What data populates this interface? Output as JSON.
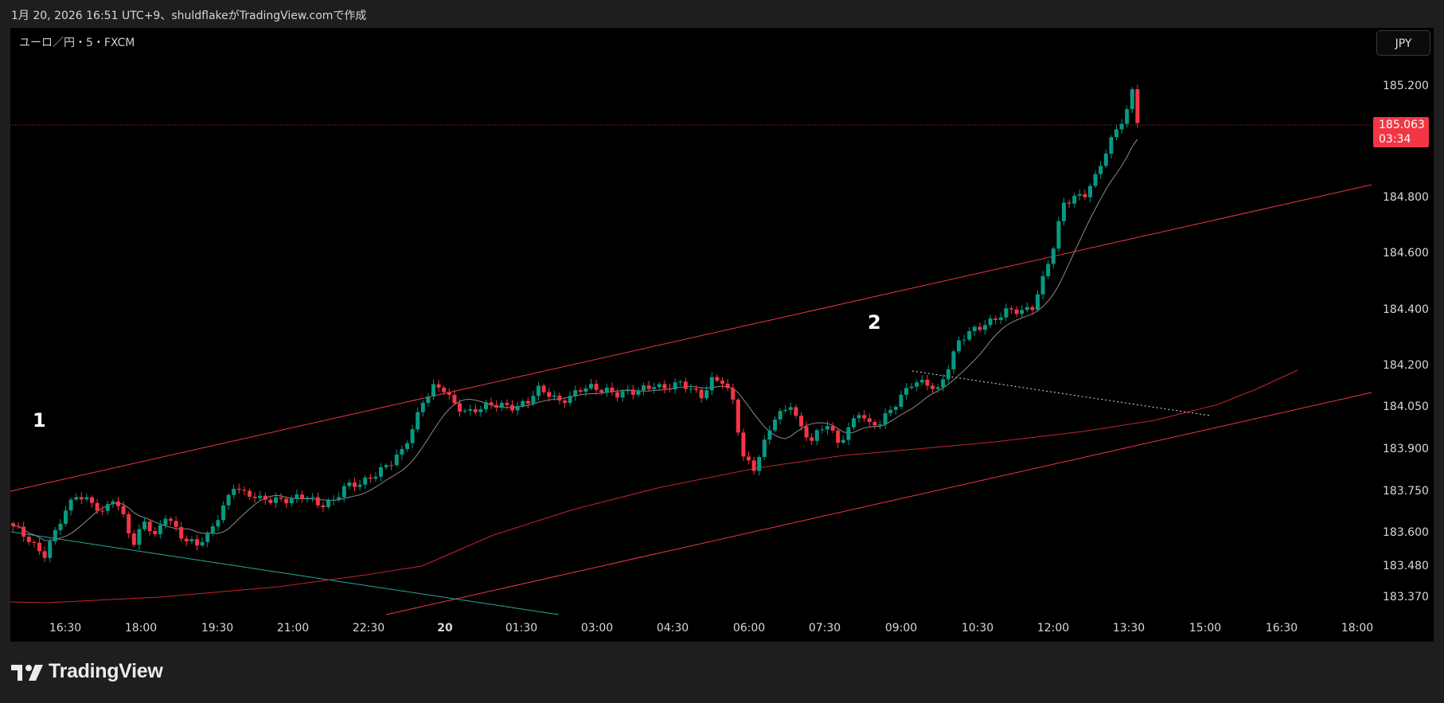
{
  "header": {
    "created_text": "1月 20, 2026 16:51 UTC+9、shuldflakeがTradingView.comで作成"
  },
  "chart_header": {
    "symbol": "ユーロ／円・5・FXCM",
    "currency_button": "JPY"
  },
  "price_tag": {
    "price": "185.063",
    "countdown": "03:34"
  },
  "annotations": [
    {
      "text": "1"
    },
    {
      "text": "2"
    }
  ],
  "footer": {
    "brand": "TradingView"
  },
  "colors": {
    "up": "#089981",
    "down": "#f23645",
    "background": "#000000",
    "channel": "#f23645",
    "ma_short": "#8a8a8a",
    "ma_long": "#c2262f",
    "trend_teal": "#2aa7a0",
    "dotted_trend": "#dddddd"
  },
  "chart_data": {
    "type": "candlestick",
    "symbol": "ユーロ／円",
    "interval": "5",
    "source": "FXCM",
    "last_price": 185.063,
    "y_ticks": [
      "185.200",
      "184.800",
      "184.600",
      "184.400",
      "184.200",
      "184.050",
      "183.900",
      "183.750",
      "183.600",
      "183.480",
      "183.370"
    ],
    "x_ticks": [
      "16:30",
      "18:00",
      "19:30",
      "21:00",
      "22:30",
      "20",
      "01:30",
      "03:00",
      "04:30",
      "06:00",
      "07:30",
      "09:00",
      "10:30",
      "12:00",
      "13:30",
      "15:00",
      "16:30",
      "18:00"
    ],
    "price_path": [
      [
        0,
        183.62
      ],
      [
        6,
        183.53
      ],
      [
        9,
        183.64
      ],
      [
        12,
        183.74
      ],
      [
        15,
        183.72
      ],
      [
        17,
        183.67
      ],
      [
        19,
        183.72
      ],
      [
        21,
        183.66
      ],
      [
        23,
        183.57
      ],
      [
        25,
        183.65
      ],
      [
        27,
        183.58
      ],
      [
        29,
        183.66
      ],
      [
        31,
        183.62
      ],
      [
        33,
        183.58
      ],
      [
        35,
        183.56
      ],
      [
        37,
        183.58
      ],
      [
        40,
        183.7
      ],
      [
        42,
        183.78
      ],
      [
        44,
        183.74
      ],
      [
        47,
        183.72
      ],
      [
        50,
        183.73
      ],
      [
        53,
        183.72
      ],
      [
        56,
        183.73
      ],
      [
        58,
        183.71
      ],
      [
        61,
        183.72
      ],
      [
        63,
        183.76
      ],
      [
        66,
        183.78
      ],
      [
        68,
        183.81
      ],
      [
        70,
        183.83
      ],
      [
        72,
        183.85
      ],
      [
        74,
        183.89
      ],
      [
        76,
        183.98
      ],
      [
        78,
        184.08
      ],
      [
        80,
        184.12
      ],
      [
        82,
        184.11
      ],
      [
        84,
        184.06
      ],
      [
        87,
        184.04
      ],
      [
        90,
        184.05
      ],
      [
        93,
        184.06
      ],
      [
        96,
        184.06
      ],
      [
        98,
        184.07
      ],
      [
        100,
        184.11
      ],
      [
        102,
        184.1
      ],
      [
        104,
        184.08
      ],
      [
        106,
        184.09
      ],
      [
        108,
        184.11
      ],
      [
        110,
        184.12
      ],
      [
        113,
        184.12
      ],
      [
        115,
        184.1
      ],
      [
        118,
        184.1
      ],
      [
        120,
        184.12
      ],
      [
        122,
        184.14
      ],
      [
        124,
        184.12
      ],
      [
        127,
        184.13
      ],
      [
        129,
        184.12
      ],
      [
        131,
        184.1
      ],
      [
        133,
        184.15
      ],
      [
        135,
        184.14
      ],
      [
        137,
        184.07
      ],
      [
        139,
        183.88
      ],
      [
        141,
        183.84
      ],
      [
        143,
        183.92
      ],
      [
        145,
        184.01
      ],
      [
        147,
        184.04
      ],
      [
        148,
        184.07
      ],
      [
        150,
        183.98
      ],
      [
        152,
        183.93
      ],
      [
        155,
        183.99
      ],
      [
        157,
        183.93
      ],
      [
        159,
        183.98
      ],
      [
        161,
        184.03
      ],
      [
        163,
        183.98
      ],
      [
        165,
        184.0
      ],
      [
        167,
        184.05
      ],
      [
        169,
        184.09
      ],
      [
        171,
        184.13
      ],
      [
        174,
        184.14
      ],
      [
        176,
        184.12
      ],
      [
        178,
        184.2
      ],
      [
        180,
        184.28
      ],
      [
        182,
        184.32
      ],
      [
        185,
        184.36
      ],
      [
        187,
        184.37
      ],
      [
        189,
        184.39
      ],
      [
        192,
        184.4
      ],
      [
        194,
        184.42
      ],
      [
        196,
        184.51
      ],
      [
        198,
        184.62
      ],
      [
        200,
        184.78
      ],
      [
        202,
        184.81
      ],
      [
        204,
        184.82
      ],
      [
        206,
        184.87
      ],
      [
        208,
        184.96
      ],
      [
        210,
        185.05
      ],
      [
        212,
        185.12
      ],
      [
        213,
        185.19
      ],
      [
        214,
        185.07
      ]
    ],
    "overlays": [
      "upper channel line",
      "lower channel line",
      "short moving average",
      "long moving average",
      "descending teal trendline",
      "dotted descending trendline"
    ]
  }
}
